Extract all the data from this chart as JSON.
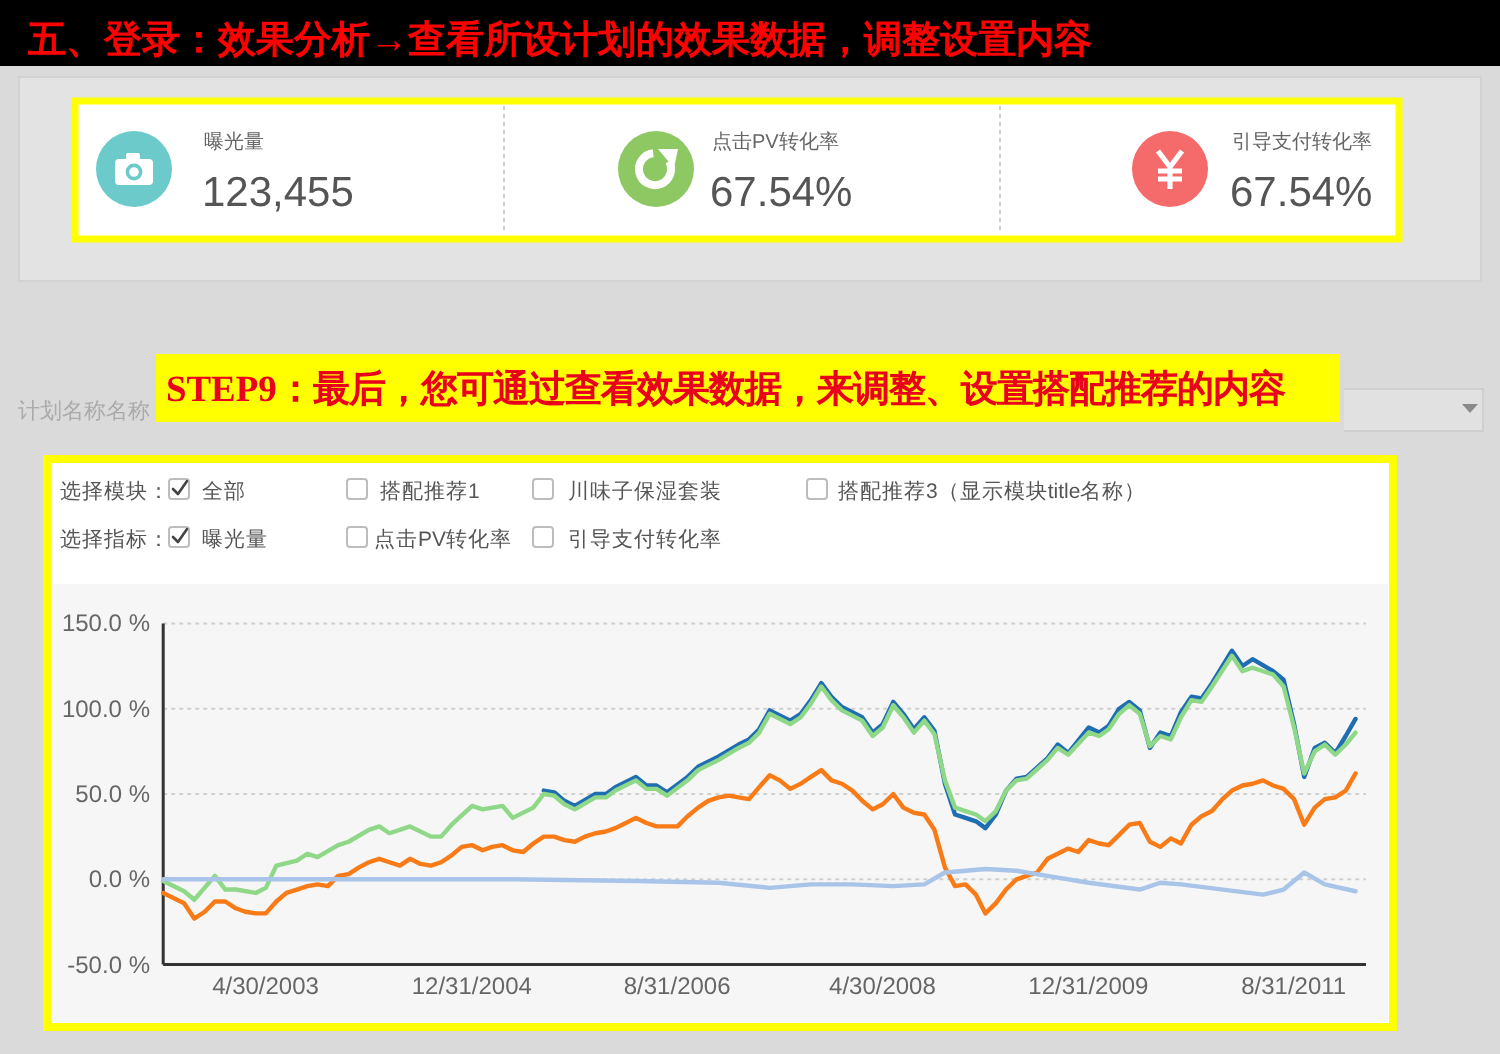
{
  "chart_data": [
    {
      "type": "other",
      "title": "五、登录：效果分析→查看所设计划的效果数据，调整设置内容",
      "categories": [
        "曝光量",
        "点击PV转化率",
        "引导支付转化率"
      ],
      "value_labels": [
        "123,455",
        "67.54%",
        "67.54%"
      ]
    },
    {
      "type": "line",
      "title": "STEP9：最后，您可通过查看效果数据，来调整、设置搭配推荐的内容",
      "annotations": [
        "计划名称名称",
        "选择模块：",
        "全部",
        "搭配推荐1",
        "川味子保湿套装",
        "搭配推荐3（显示模块title名称）",
        "选择指标：",
        "曝光量",
        "点击PV转化率",
        "引导支付转化率"
      ],
      "xlim": [
        "2002-07-01",
        "2012-04-01"
      ],
      "xticks": [
        {
          "value": "2003-04-30",
          "label": "4/30/2003"
        },
        {
          "value": "2004-12-31",
          "label": "12/31/2004"
        },
        {
          "value": "2006-08-31",
          "label": "8/31/2006"
        },
        {
          "value": "2008-04-30",
          "label": "4/30/2008"
        },
        {
          "value": "2009-12-31",
          "label": "12/31/2009"
        },
        {
          "value": "2011-08-31",
          "label": "8/31/2011"
        }
      ],
      "ylim": [
        -50,
        150
      ],
      "yticks": [
        {
          "value": -50,
          "label": "-50.0 %"
        },
        {
          "value": 0,
          "label": "0.0 %"
        },
        {
          "value": 50,
          "label": "50.0 %"
        },
        {
          "value": 100,
          "label": "100.0 %"
        },
        {
          "value": 150,
          "label": "150.0 %"
        }
      ],
      "grid": "y",
      "series": [
        {
          "color": "#1f6db3",
          "x": [
            "2005-08",
            "2005-09",
            "2005-10",
            "2005-11",
            "2006-01",
            "2006-02",
            "2006-03",
            "2006-05",
            "2006-06",
            "2006-07",
            "2006-08",
            "2006-10",
            "2006-11",
            "2007-01",
            "2007-03",
            "2007-04",
            "2007-05",
            "2007-06",
            "2007-08",
            "2007-09",
            "2007-10",
            "2007-11",
            "2007-12",
            "2008-01",
            "2008-03",
            "2008-04",
            "2008-05",
            "2008-06",
            "2008-07",
            "2008-08",
            "2008-09",
            "2008-10",
            "2008-11",
            "2008-12",
            "2009-01",
            "2009-02",
            "2009-03",
            "2009-04",
            "2009-05",
            "2009-06",
            "2009-07",
            "2009-09",
            "2009-10",
            "2009-11",
            "2010-01",
            "2010-02",
            "2010-03",
            "2010-04",
            "2010-05",
            "2010-06",
            "2010-07",
            "2010-08",
            "2010-09",
            "2010-10",
            "2010-11",
            "2010-12",
            "2011-01",
            "2011-03",
            "2011-04",
            "2011-05",
            "2011-07",
            "2011-08",
            "2011-09",
            "2011-10",
            "2011-11",
            "2011-12",
            "2012-01",
            "2012-02",
            "2012-03"
          ],
          "values": [
            52,
            51,
            46,
            43,
            50,
            50,
            54,
            60,
            55,
            55,
            51,
            60,
            66,
            72,
            79,
            82,
            88,
            99,
            93,
            97,
            105,
            115,
            107,
            101,
            95,
            86,
            91,
            104,
            97,
            88,
            95,
            87,
            56,
            38,
            36,
            34,
            30,
            38,
            52,
            59,
            60,
            71,
            79,
            74,
            89,
            86,
            90,
            100,
            104,
            99,
            77,
            86,
            84,
            98,
            107,
            106,
            115,
            134,
            125,
            129,
            122,
            117,
            91,
            60,
            77,
            80,
            74,
            84,
            94
          ]
        },
        {
          "color": "#8ed888",
          "x": [
            "2002-07",
            "2002-09",
            "2002-10",
            "2002-12",
            "2003-01",
            "2003-02",
            "2003-04",
            "2003-05",
            "2003-06",
            "2003-08",
            "2003-09",
            "2003-10",
            "2003-12",
            "2004-01",
            "2004-03",
            "2004-04",
            "2004-05",
            "2004-07",
            "2004-09",
            "2004-10",
            "2004-11",
            "2005-01",
            "2005-02",
            "2005-04",
            "2005-05",
            "2005-07",
            "2005-08",
            "2005-09",
            "2005-10",
            "2005-11",
            "2006-01",
            "2006-02",
            "2006-03",
            "2006-05",
            "2006-06",
            "2006-07",
            "2006-08",
            "2006-10",
            "2006-11",
            "2007-01",
            "2007-03",
            "2007-04",
            "2007-05",
            "2007-06",
            "2007-08",
            "2007-09",
            "2007-10",
            "2007-11",
            "2007-12",
            "2008-01",
            "2008-03",
            "2008-04",
            "2008-05",
            "2008-06",
            "2008-07",
            "2008-08",
            "2008-09",
            "2008-10",
            "2008-11",
            "2008-12",
            "2009-01",
            "2009-02",
            "2009-03",
            "2009-04",
            "2009-05",
            "2009-06",
            "2009-07",
            "2009-09",
            "2009-10",
            "2009-11",
            "2010-01",
            "2010-02",
            "2010-03",
            "2010-04",
            "2010-05",
            "2010-06",
            "2010-07",
            "2010-08",
            "2010-09",
            "2010-10",
            "2010-11",
            "2010-12",
            "2011-01",
            "2011-03",
            "2011-04",
            "2011-05",
            "2011-07",
            "2011-08",
            "2011-09",
            "2011-10",
            "2011-11",
            "2011-12",
            "2012-01",
            "2012-02",
            "2012-03"
          ],
          "values": [
            -1,
            -7,
            -12,
            2,
            -6,
            -6,
            -8,
            -5,
            8,
            11,
            15,
            13,
            20,
            22,
            29,
            31,
            27,
            31,
            25,
            25,
            32,
            43,
            41,
            43,
            36,
            42,
            50,
            49,
            44,
            41,
            48,
            48,
            52,
            58,
            53,
            53,
            49,
            58,
            64,
            70,
            77,
            80,
            86,
            97,
            91,
            95,
            103,
            113,
            105,
            99,
            93,
            84,
            89,
            102,
            95,
            86,
            93,
            85,
            58,
            42,
            40,
            38,
            34,
            40,
            52,
            58,
            59,
            70,
            77,
            73,
            86,
            84,
            88,
            97,
            102,
            97,
            78,
            84,
            82,
            95,
            105,
            104,
            113,
            131,
            122,
            124,
            120,
            113,
            89,
            62,
            75,
            79,
            73,
            79,
            86
          ]
        },
        {
          "color": "#f87b17",
          "x": [
            "2002-07",
            "2002-09",
            "2002-10",
            "2002-11",
            "2002-12",
            "2003-01",
            "2003-02",
            "2003-03",
            "2003-04",
            "2003-05",
            "2003-06",
            "2003-07",
            "2003-08",
            "2003-09",
            "2003-10",
            "2003-11",
            "2003-12",
            "2004-01",
            "2004-02",
            "2004-03",
            "2004-04",
            "2004-05",
            "2004-06",
            "2004-07",
            "2004-08",
            "2004-09",
            "2004-10",
            "2004-11",
            "2004-12",
            "2005-01",
            "2005-02",
            "2005-03",
            "2005-04",
            "2005-05",
            "2005-06",
            "2005-07",
            "2005-08",
            "2005-09",
            "2005-10",
            "2005-11",
            "2005-12",
            "2006-01",
            "2006-02",
            "2006-03",
            "2006-04",
            "2006-05",
            "2006-06",
            "2006-07",
            "2006-08",
            "2006-09",
            "2006-10",
            "2006-11",
            "2006-12",
            "2007-01",
            "2007-02",
            "2007-03",
            "2007-04",
            "2007-05",
            "2007-06",
            "2007-07",
            "2007-08",
            "2007-09",
            "2007-10",
            "2007-11",
            "2007-12",
            "2008-01",
            "2008-02",
            "2008-03",
            "2008-04",
            "2008-05",
            "2008-06",
            "2008-07",
            "2008-08",
            "2008-09",
            "2008-10",
            "2008-11",
            "2008-12",
            "2009-01",
            "2009-02",
            "2009-03",
            "2009-04",
            "2009-05",
            "2009-06",
            "2009-07",
            "2009-08",
            "2009-09",
            "2009-10",
            "2009-11",
            "2009-12",
            "2010-01",
            "2010-02",
            "2010-03",
            "2010-04",
            "2010-05",
            "2010-06",
            "2010-07",
            "2010-08",
            "2010-09",
            "2010-10",
            "2010-11",
            "2010-12",
            "2011-01",
            "2011-02",
            "2011-03",
            "2011-04",
            "2011-05",
            "2011-06",
            "2011-07",
            "2011-08",
            "2011-09",
            "2011-10",
            "2011-11",
            "2011-12",
            "2012-01",
            "2012-02",
            "2012-03"
          ],
          "values": [
            -8,
            -14,
            -23,
            -19,
            -13,
            -13,
            -17,
            -19,
            -20,
            -20,
            -13,
            -8,
            -6,
            -4,
            -3,
            -4,
            2,
            3,
            7,
            10,
            12,
            10,
            8,
            12,
            9,
            8,
            10,
            14,
            19,
            20,
            17,
            19,
            20,
            17,
            16,
            21,
            25,
            25,
            23,
            22,
            25,
            27,
            28,
            30,
            33,
            36,
            33,
            31,
            31,
            31,
            37,
            42,
            46,
            48,
            49,
            48,
            47,
            54,
            61,
            58,
            53,
            56,
            60,
            64,
            58,
            56,
            52,
            46,
            41,
            44,
            50,
            42,
            39,
            38,
            29,
            7,
            -4,
            -3,
            -9,
            -20,
            -14,
            -6,
            0,
            2,
            4,
            12,
            15,
            18,
            16,
            23,
            21,
            20,
            26,
            32,
            33,
            22,
            19,
            24,
            21,
            32,
            37,
            40,
            47,
            52,
            55,
            56,
            58,
            55,
            53,
            47,
            32,
            42,
            47,
            48,
            52,
            62
          ]
        },
        {
          "color": "#a8c4e8",
          "x": [
            "2002-07",
            "2003-05",
            "2004-05",
            "2005-05",
            "2006-05",
            "2007-01",
            "2007-06",
            "2007-10",
            "2008-02",
            "2008-06",
            "2008-09",
            "2008-11",
            "2009-03",
            "2009-06",
            "2009-10",
            "2010-01",
            "2010-06",
            "2010-08",
            "2010-10",
            "2011-06",
            "2011-08",
            "2011-10",
            "2011-12",
            "2012-03"
          ],
          "values": [
            0,
            0,
            0,
            0,
            -1,
            -2,
            -5,
            -3,
            -3,
            -4,
            -3,
            4,
            6,
            5,
            1,
            -2,
            -6,
            -2,
            -3,
            -9,
            -6,
            4,
            -3,
            -7
          ]
        }
      ]
    }
  ]
}
